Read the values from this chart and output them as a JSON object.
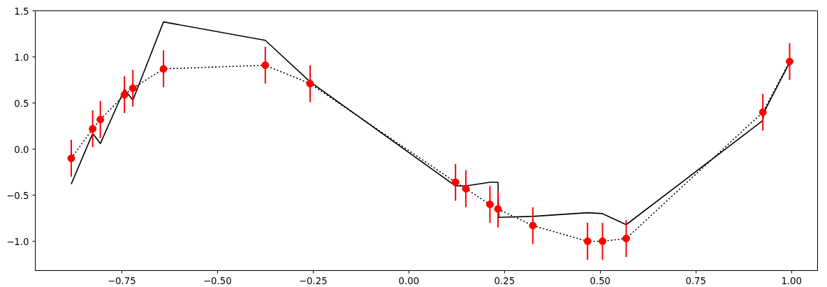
{
  "chart_data": {
    "type": "line",
    "xlim": [
      -0.976,
      1.068
    ],
    "ylim": [
      -1.318,
      1.5
    ],
    "xticks": [
      {
        "value": -0.75,
        "label": "−0.75"
      },
      {
        "value": -0.5,
        "label": "−0.50"
      },
      {
        "value": -0.25,
        "label": "−0.25"
      },
      {
        "value": 0,
        "label": "0.00"
      },
      {
        "value": 0.25,
        "label": "0.25"
      },
      {
        "value": 0.5,
        "label": "0.50"
      },
      {
        "value": 0.75,
        "label": "0.75"
      },
      {
        "value": 1.0,
        "label": "1.00"
      }
    ],
    "yticks": [
      {
        "value": -1.0,
        "label": "−1.0"
      },
      {
        "value": -0.5,
        "label": "−0.5"
      },
      {
        "value": 0,
        "label": "0.0"
      },
      {
        "value": 0.5,
        "label": "0.5"
      },
      {
        "value": 1.0,
        "label": "1.0"
      },
      {
        "value": 1.5,
        "label": "1.5"
      }
    ],
    "grid": false,
    "series": [
      {
        "color": "#000000",
        "line_style": "solid",
        "marker": "none",
        "x": [
          -0.882,
          -0.826,
          -0.806,
          -0.743,
          -0.721,
          -0.641,
          -0.375,
          -0.258,
          0.122,
          0.149,
          0.212,
          0.233,
          0.235,
          0.324,
          0.467,
          0.506,
          0.568,
          0.925,
          0.928,
          0.995
        ],
        "values": [
          -0.38,
          0.17,
          0.06,
          0.65,
          0.53,
          1.38,
          1.18,
          0.73,
          -0.4,
          -0.4,
          -0.36,
          -0.36,
          -0.74,
          -0.73,
          -0.69,
          -0.7,
          -0.82,
          0.31,
          0.4,
          0.94
        ]
      },
      {
        "color": "#000000",
        "line_style": "dotted",
        "marker": "none",
        "x": [
          -0.882,
          -0.826,
          -0.806,
          -0.743,
          -0.721,
          -0.641,
          -0.375,
          -0.258,
          0.122,
          0.149,
          0.212,
          0.233,
          0.324,
          0.467,
          0.506,
          0.568,
          0.925,
          0.995
        ],
        "values": [
          -0.1,
          0.22,
          0.32,
          0.59,
          0.66,
          0.87,
          0.91,
          0.71,
          -0.36,
          -0.43,
          -0.6,
          -0.65,
          -0.83,
          -1.0,
          -1.0,
          -0.97,
          0.4,
          0.95
        ]
      },
      {
        "type": "scatter",
        "color": "#ff0000",
        "marker": "circle",
        "x": [
          -0.882,
          -0.826,
          -0.806,
          -0.743,
          -0.721,
          -0.641,
          -0.375,
          -0.258,
          0.122,
          0.149,
          0.212,
          0.233,
          0.324,
          0.467,
          0.506,
          0.568,
          0.925,
          0.995
        ],
        "values": [
          -0.1,
          0.22,
          0.32,
          0.59,
          0.66,
          0.87,
          0.91,
          0.71,
          -0.36,
          -0.43,
          -0.6,
          -0.65,
          -0.83,
          -1.0,
          -1.0,
          -0.97,
          0.4,
          0.95
        ],
        "errors": [
          0.2,
          0.2,
          0.2,
          0.2,
          0.2,
          0.2,
          0.2,
          0.2,
          0.2,
          0.2,
          0.2,
          0.2,
          0.2,
          0.2,
          0.2,
          0.2,
          0.2,
          0.2
        ]
      }
    ]
  }
}
